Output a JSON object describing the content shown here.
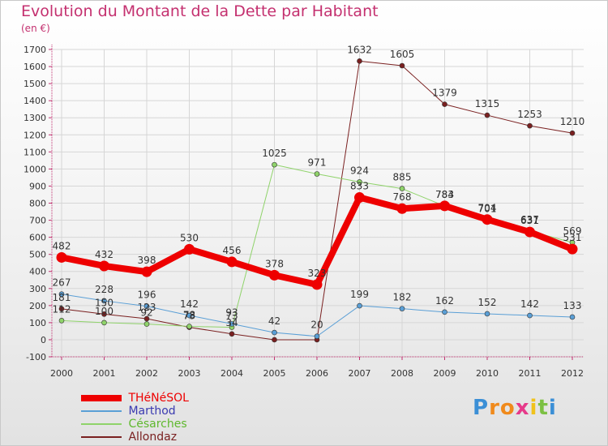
{
  "title": "Evolution du Montant de la Dette par Habitant",
  "unit_label": "(en €)",
  "brand": {
    "letters": [
      "P",
      "r",
      "o",
      "x",
      "i",
      "t",
      "i"
    ],
    "colors": [
      "#3b8fd6",
      "#f08a1c",
      "#f08a1c",
      "#e63a8a",
      "#f0c21c",
      "#7cc043",
      "#3b8fd6"
    ]
  },
  "chart_data": {
    "type": "line",
    "x": [
      "2000",
      "2001",
      "2002",
      "2003",
      "2004",
      "2005",
      "2006",
      "2007",
      "2008",
      "2009",
      "2010",
      "2011",
      "2012"
    ],
    "ylim": [
      -100,
      1700
    ],
    "yticks": [
      "-100",
      "0",
      "100",
      "200",
      "300",
      "400",
      "500",
      "600",
      "700",
      "800",
      "900",
      "1000",
      "1100",
      "1200",
      "1300",
      "1400",
      "1500",
      "1600",
      "1700"
    ],
    "grid": true,
    "legend_position": "bottom-left",
    "series": [
      {
        "name": "Allondaz",
        "color": "#7a2020",
        "text_color": "#3a3ab0",
        "width": 1,
        "values": [
          181,
          150,
          123,
          73,
          34,
          0,
          0,
          1632,
          1605,
          1379,
          1315,
          1253,
          1210
        ],
        "labels": [
          "181",
          "150",
          "123",
          "73",
          "34",
          "",
          "",
          "1632",
          "1605",
          "1379",
          "1315",
          "1253",
          "1210"
        ]
      },
      {
        "name": "Césarches",
        "color": "#8fd36a",
        "text_color": "#5fb82e",
        "width": 1,
        "values": [
          112,
          100,
          92,
          78,
          73,
          1025,
          971,
          924,
          885,
          783,
          701,
          637,
          569
        ],
        "labels": [
          "112",
          "100",
          "92",
          "78",
          "73",
          "1025",
          "971",
          "924",
          "885",
          "783",
          "701",
          "637",
          "569"
        ]
      },
      {
        "name": "Marthod",
        "color": "#5a9fd6",
        "text_color": "#3a3ab0",
        "width": 1,
        "values": [
          267,
          228,
          196,
          142,
          93,
          42,
          20,
          199,
          182,
          162,
          152,
          142,
          133
        ],
        "labels": [
          "267",
          "228",
          "196",
          "142",
          "93",
          "42",
          "20",
          "199",
          "182",
          "162",
          "152",
          "142",
          "133"
        ]
      },
      {
        "name": "THéNéSOL",
        "color": "#ee0000",
        "text_color": "#ee0000",
        "width": 8,
        "values": [
          482,
          432,
          398,
          530,
          456,
          378,
          323,
          833,
          768,
          784,
          704,
          631,
          531
        ],
        "labels": [
          "482",
          "432",
          "398",
          "530",
          "456",
          "378",
          "323",
          "833",
          "768",
          "784",
          "704",
          "631",
          "531"
        ]
      }
    ]
  }
}
